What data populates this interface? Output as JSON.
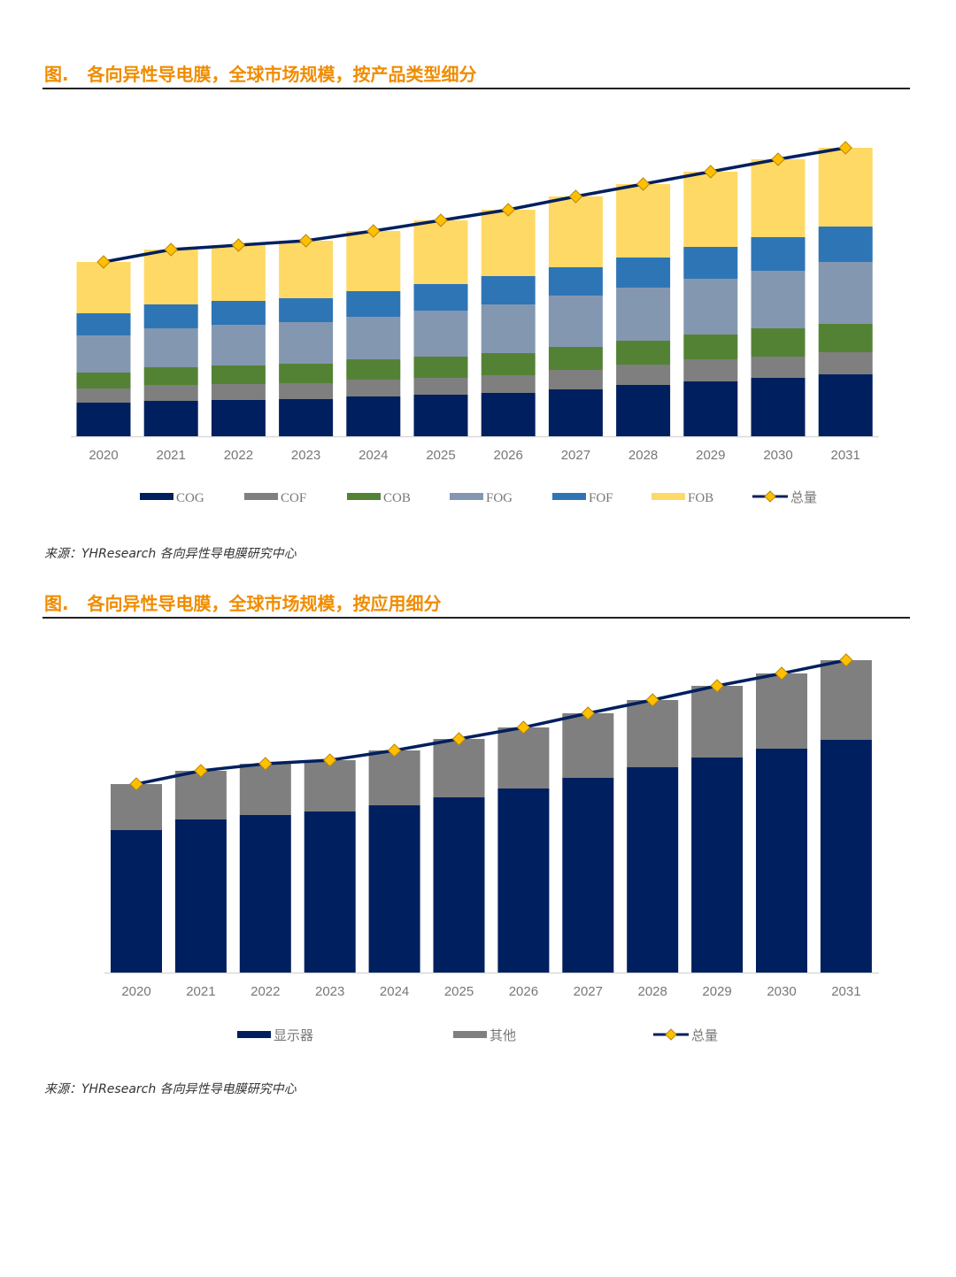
{
  "charts_meta": [
    {
      "title": "图.   各向异性导电膜，全球市场规模，按产品类型细分",
      "source": "来源：YHResearch 各向异性导电膜研究中心"
    },
    {
      "title": "图.   各向异性导电膜，全球市场规模，按应用细分",
      "source": "来源：YHResearch 各向异性导电膜研究中心"
    }
  ],
  "chart_data": [
    {
      "type": "bar",
      "stacked": true,
      "title": "图.   各向异性导电膜，全球市场规模，按产品类型细分",
      "categories": [
        "2020",
        "2021",
        "2022",
        "2023",
        "2024",
        "2025",
        "2026",
        "2027",
        "2028",
        "2029",
        "2030",
        "2031"
      ],
      "y_axis_shown": false,
      "grid": false,
      "legend_position": "bottom",
      "series": [
        {
          "name": "COG",
          "color": "#001f5f",
          "values": [
            38,
            40,
            41,
            42,
            45,
            47,
            49,
            53,
            58,
            62,
            66,
            70
          ]
        },
        {
          "name": "COF",
          "color": "#7f7f7f",
          "values": [
            16,
            18,
            18,
            18,
            19,
            19,
            20,
            22,
            23,
            25,
            24,
            25
          ]
        },
        {
          "name": "COB",
          "color": "#548235",
          "values": [
            18,
            20,
            21,
            22,
            23,
            24,
            25,
            26,
            27,
            28,
            32,
            32
          ]
        },
        {
          "name": "FOG",
          "color": "#8497b0",
          "values": [
            42,
            44,
            46,
            47,
            48,
            52,
            55,
            58,
            60,
            63,
            65,
            70
          ]
        },
        {
          "name": "FOF",
          "color": "#2e75b6",
          "values": [
            25,
            27,
            27,
            27,
            29,
            30,
            32,
            32,
            34,
            36,
            38,
            40
          ]
        },
        {
          "name": "FOB",
          "color": "#ffd966",
          "values": [
            58,
            62,
            63,
            65,
            68,
            72,
            75,
            80,
            83,
            85,
            88,
            89
          ]
        }
      ],
      "line": {
        "name": "总量",
        "color": "#001f5f",
        "marker_color": "#ffc000",
        "values": [
          197,
          211,
          216,
          221,
          232,
          244,
          256,
          271,
          285,
          299,
          313,
          326
        ]
      }
    },
    {
      "type": "bar",
      "stacked": true,
      "title": "图.   各向异性导电膜，全球市场规模，按应用细分",
      "categories": [
        "2020",
        "2021",
        "2022",
        "2023",
        "2024",
        "2025",
        "2026",
        "2027",
        "2028",
        "2029",
        "2030",
        "2031"
      ],
      "y_axis_shown": false,
      "grid": false,
      "legend_position": "bottom",
      "series": [
        {
          "name": "显示器",
          "color": "#001f5f",
          "values": [
            161,
            173,
            178,
            182,
            189,
            198,
            208,
            220,
            232,
            243,
            253,
            263
          ]
        },
        {
          "name": "其他",
          "color": "#7f7f7f",
          "values": [
            52,
            55,
            58,
            58,
            62,
            66,
            69,
            73,
            76,
            81,
            85,
            90
          ]
        }
      ],
      "line": {
        "name": "总量",
        "color": "#001f5f",
        "marker_color": "#ffc000",
        "values": [
          213,
          228,
          236,
          240,
          251,
          264,
          277,
          293,
          308,
          324,
          338,
          353
        ]
      }
    }
  ]
}
